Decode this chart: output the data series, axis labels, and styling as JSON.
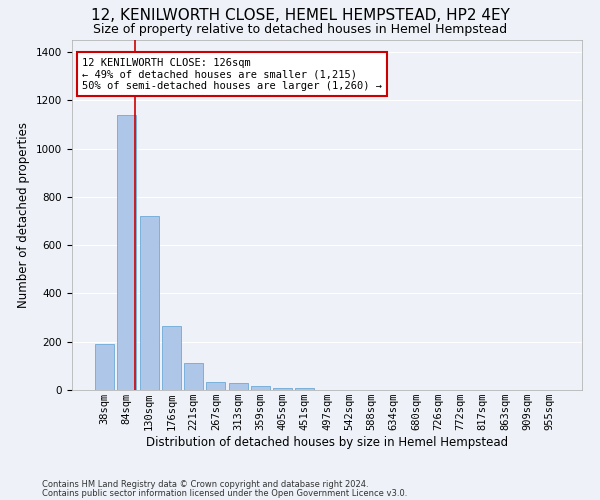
{
  "title": "12, KENILWORTH CLOSE, HEMEL HEMPSTEAD, HP2 4EY",
  "subtitle": "Size of property relative to detached houses in Hemel Hempstead",
  "xlabel": "Distribution of detached houses by size in Hemel Hempstead",
  "ylabel": "Number of detached properties",
  "footnote1": "Contains HM Land Registry data © Crown copyright and database right 2024.",
  "footnote2": "Contains public sector information licensed under the Open Government Licence v3.0.",
  "bin_labels": [
    "38sqm",
    "84sqm",
    "130sqm",
    "176sqm",
    "221sqm",
    "267sqm",
    "313sqm",
    "359sqm",
    "405sqm",
    "451sqm",
    "497sqm",
    "542sqm",
    "588sqm",
    "634sqm",
    "680sqm",
    "726sqm",
    "772sqm",
    "817sqm",
    "863sqm",
    "909sqm",
    "955sqm"
  ],
  "bar_values": [
    190,
    1140,
    720,
    265,
    110,
    35,
    28,
    18,
    8,
    7,
    0,
    0,
    0,
    0,
    0,
    0,
    0,
    0,
    0,
    0,
    0
  ],
  "bar_color": "#aec6e8",
  "bar_edge_color": "#5a9fd4",
  "vline_color": "#cc0000",
  "annotation_text": "12 KENILWORTH CLOSE: 126sqm\n← 49% of detached houses are smaller (1,215)\n50% of semi-detached houses are larger (1,260) →",
  "annotation_box_color": "#ffffff",
  "annotation_box_edge_color": "#cc0000",
  "ylim": [
    0,
    1450
  ],
  "background_color": "#eef2f8",
  "grid_color": "#ffffff",
  "title_fontsize": 11,
  "subtitle_fontsize": 9,
  "axis_label_fontsize": 8.5,
  "tick_fontsize": 7.5
}
